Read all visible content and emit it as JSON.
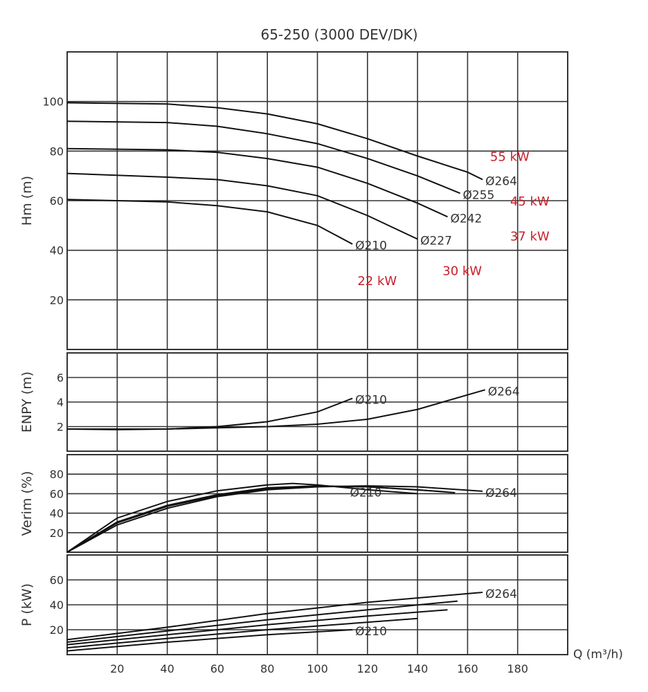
{
  "chart_data": {
    "type": "line",
    "title": "65-250 (3000 DEV/DK)",
    "xlabel": "Q (m³/h)",
    "xlim": [
      0,
      200
    ],
    "xticks": [
      20,
      40,
      60,
      80,
      100,
      120,
      140,
      160,
      180
    ],
    "grid": true,
    "panels": [
      {
        "id": "head",
        "ylabel": "Hm (m)",
        "ylim": [
          0,
          120
        ],
        "yticks": [
          20,
          40,
          60,
          80,
          100
        ],
        "grid_y": [
          20,
          40,
          60,
          80,
          100
        ],
        "series": [
          {
            "name": "Ø264",
            "points": [
              [
                0,
                99.5
              ],
              [
                40,
                99
              ],
              [
                60,
                97.5
              ],
              [
                80,
                95
              ],
              [
                100,
                91
              ],
              [
                120,
                85
              ],
              [
                140,
                78
              ],
              [
                160,
                71.5
              ],
              [
                166,
                68.5
              ]
            ]
          },
          {
            "name": "Ø255",
            "points": [
              [
                0,
                92
              ],
              [
                40,
                91.5
              ],
              [
                60,
                90
              ],
              [
                80,
                87
              ],
              [
                100,
                83
              ],
              [
                120,
                77
              ],
              [
                140,
                70
              ],
              [
                157,
                63
              ]
            ]
          },
          {
            "name": "Ø242",
            "points": [
              [
                0,
                81
              ],
              [
                40,
                80.5
              ],
              [
                60,
                79.5
              ],
              [
                80,
                77
              ],
              [
                100,
                73.5
              ],
              [
                120,
                67
              ],
              [
                140,
                59
              ],
              [
                152,
                53.5
              ]
            ]
          },
          {
            "name": "Ø227",
            "points": [
              [
                0,
                71
              ],
              [
                40,
                69.5
              ],
              [
                60,
                68.5
              ],
              [
                80,
                66
              ],
              [
                100,
                62
              ],
              [
                120,
                54
              ],
              [
                140,
                44.5
              ]
            ]
          },
          {
            "name": "Ø210",
            "points": [
              [
                0,
                60.5
              ],
              [
                40,
                59.5
              ],
              [
                60,
                58
              ],
              [
                80,
                55.5
              ],
              [
                100,
                50
              ],
              [
                114,
                42.5
              ]
            ]
          }
        ],
        "annotations": [
          {
            "text": "55 kW",
            "x": 169,
            "y": 76
          },
          {
            "text": "45 kW",
            "x": 177,
            "y": 58
          },
          {
            "text": "37 kW",
            "x": 177,
            "y": 44
          },
          {
            "text": "30 kW",
            "x": 150,
            "y": 30
          },
          {
            "text": "22 kW",
            "x": 116,
            "y": 26
          }
        ]
      },
      {
        "id": "npsh",
        "ylabel": "ENPY (m)",
        "ylim": [
          0,
          8
        ],
        "yticks": [
          2,
          4,
          6
        ],
        "grid_y": [
          2,
          4,
          6
        ],
        "series": [
          {
            "name": "Ø264",
            "points": [
              [
                0,
                1.8
              ],
              [
                20,
                1.75
              ],
              [
                40,
                1.8
              ],
              [
                60,
                1.9
              ],
              [
                80,
                2.0
              ],
              [
                100,
                2.2
              ],
              [
                120,
                2.6
              ],
              [
                140,
                3.4
              ],
              [
                167,
                5.0
              ]
            ]
          },
          {
            "name": "Ø210",
            "points": [
              [
                0,
                1.8
              ],
              [
                40,
                1.8
              ],
              [
                60,
                2.0
              ],
              [
                80,
                2.4
              ],
              [
                100,
                3.2
              ],
              [
                114,
                4.3
              ]
            ]
          }
        ]
      },
      {
        "id": "efficiency",
        "ylabel": "Verim (%)",
        "ylim": [
          0,
          100
        ],
        "yticks": [
          20,
          40,
          60,
          80
        ],
        "grid_y": [
          20,
          40,
          60,
          80
        ],
        "series": [
          {
            "name": "Ø264",
            "points": [
              [
                0,
                0
              ],
              [
                20,
                28
              ],
              [
                40,
                45
              ],
              [
                60,
                57
              ],
              [
                80,
                64
              ],
              [
                100,
                67
              ],
              [
                120,
                68
              ],
              [
                140,
                67
              ],
              [
                166,
                62.5
              ]
            ]
          },
          {
            "name": "Ø255",
            "points": [
              [
                0,
                0
              ],
              [
                20,
                30
              ],
              [
                40,
                47
              ],
              [
                60,
                58
              ],
              [
                80,
                65
              ],
              [
                100,
                67.5
              ],
              [
                120,
                67
              ],
              [
                140,
                64
              ],
              [
                155,
                61
              ]
            ]
          },
          {
            "name": "Ø242",
            "points": [
              [
                0,
                0
              ],
              [
                20,
                31
              ],
              [
                40,
                48
              ],
              [
                60,
                59
              ],
              [
                80,
                66
              ],
              [
                100,
                68
              ],
              [
                120,
                67
              ],
              [
                151,
                62
              ]
            ]
          },
          {
            "name": "Ø210",
            "points": [
              [
                0,
                0
              ],
              [
                20,
                35
              ],
              [
                40,
                52
              ],
              [
                60,
                63
              ],
              [
                80,
                69
              ],
              [
                90,
                70.5
              ],
              [
                100,
                69
              ],
              [
                120,
                64
              ],
              [
                140,
                60
              ]
            ]
          }
        ],
        "labels": [
          {
            "text": "Ø210",
            "x": 113,
            "y": 57
          }
        ]
      },
      {
        "id": "power",
        "ylabel": "P (kW)",
        "ylim": [
          0,
          80
        ],
        "yticks": [
          20,
          40,
          60
        ],
        "grid_y": [
          20,
          40,
          60
        ],
        "series": [
          {
            "name": "Ø264",
            "points": [
              [
                0,
                12
              ],
              [
                40,
                22
              ],
              [
                80,
                33
              ],
              [
                120,
                42
              ],
              [
                166,
                50
              ]
            ]
          },
          {
            "name": "Ø255",
            "points": [
              [
                0,
                10
              ],
              [
                40,
                19
              ],
              [
                80,
                28
              ],
              [
                120,
                36
              ],
              [
                156,
                43
              ]
            ]
          },
          {
            "name": "Ø242",
            "points": [
              [
                0,
                8
              ],
              [
                40,
                16
              ],
              [
                80,
                24
              ],
              [
                120,
                31
              ],
              [
                152,
                36
              ]
            ]
          },
          {
            "name": "Ø227",
            "points": [
              [
                0,
                5.5
              ],
              [
                40,
                13
              ],
              [
                80,
                20
              ],
              [
                140,
                29
              ]
            ]
          },
          {
            "name": "Ø210",
            "points": [
              [
                0,
                3
              ],
              [
                40,
                10
              ],
              [
                80,
                16
              ],
              [
                114,
                20
              ]
            ]
          }
        ]
      }
    ],
    "annotation_color": "#c8202a",
    "line_color": "#111111"
  }
}
